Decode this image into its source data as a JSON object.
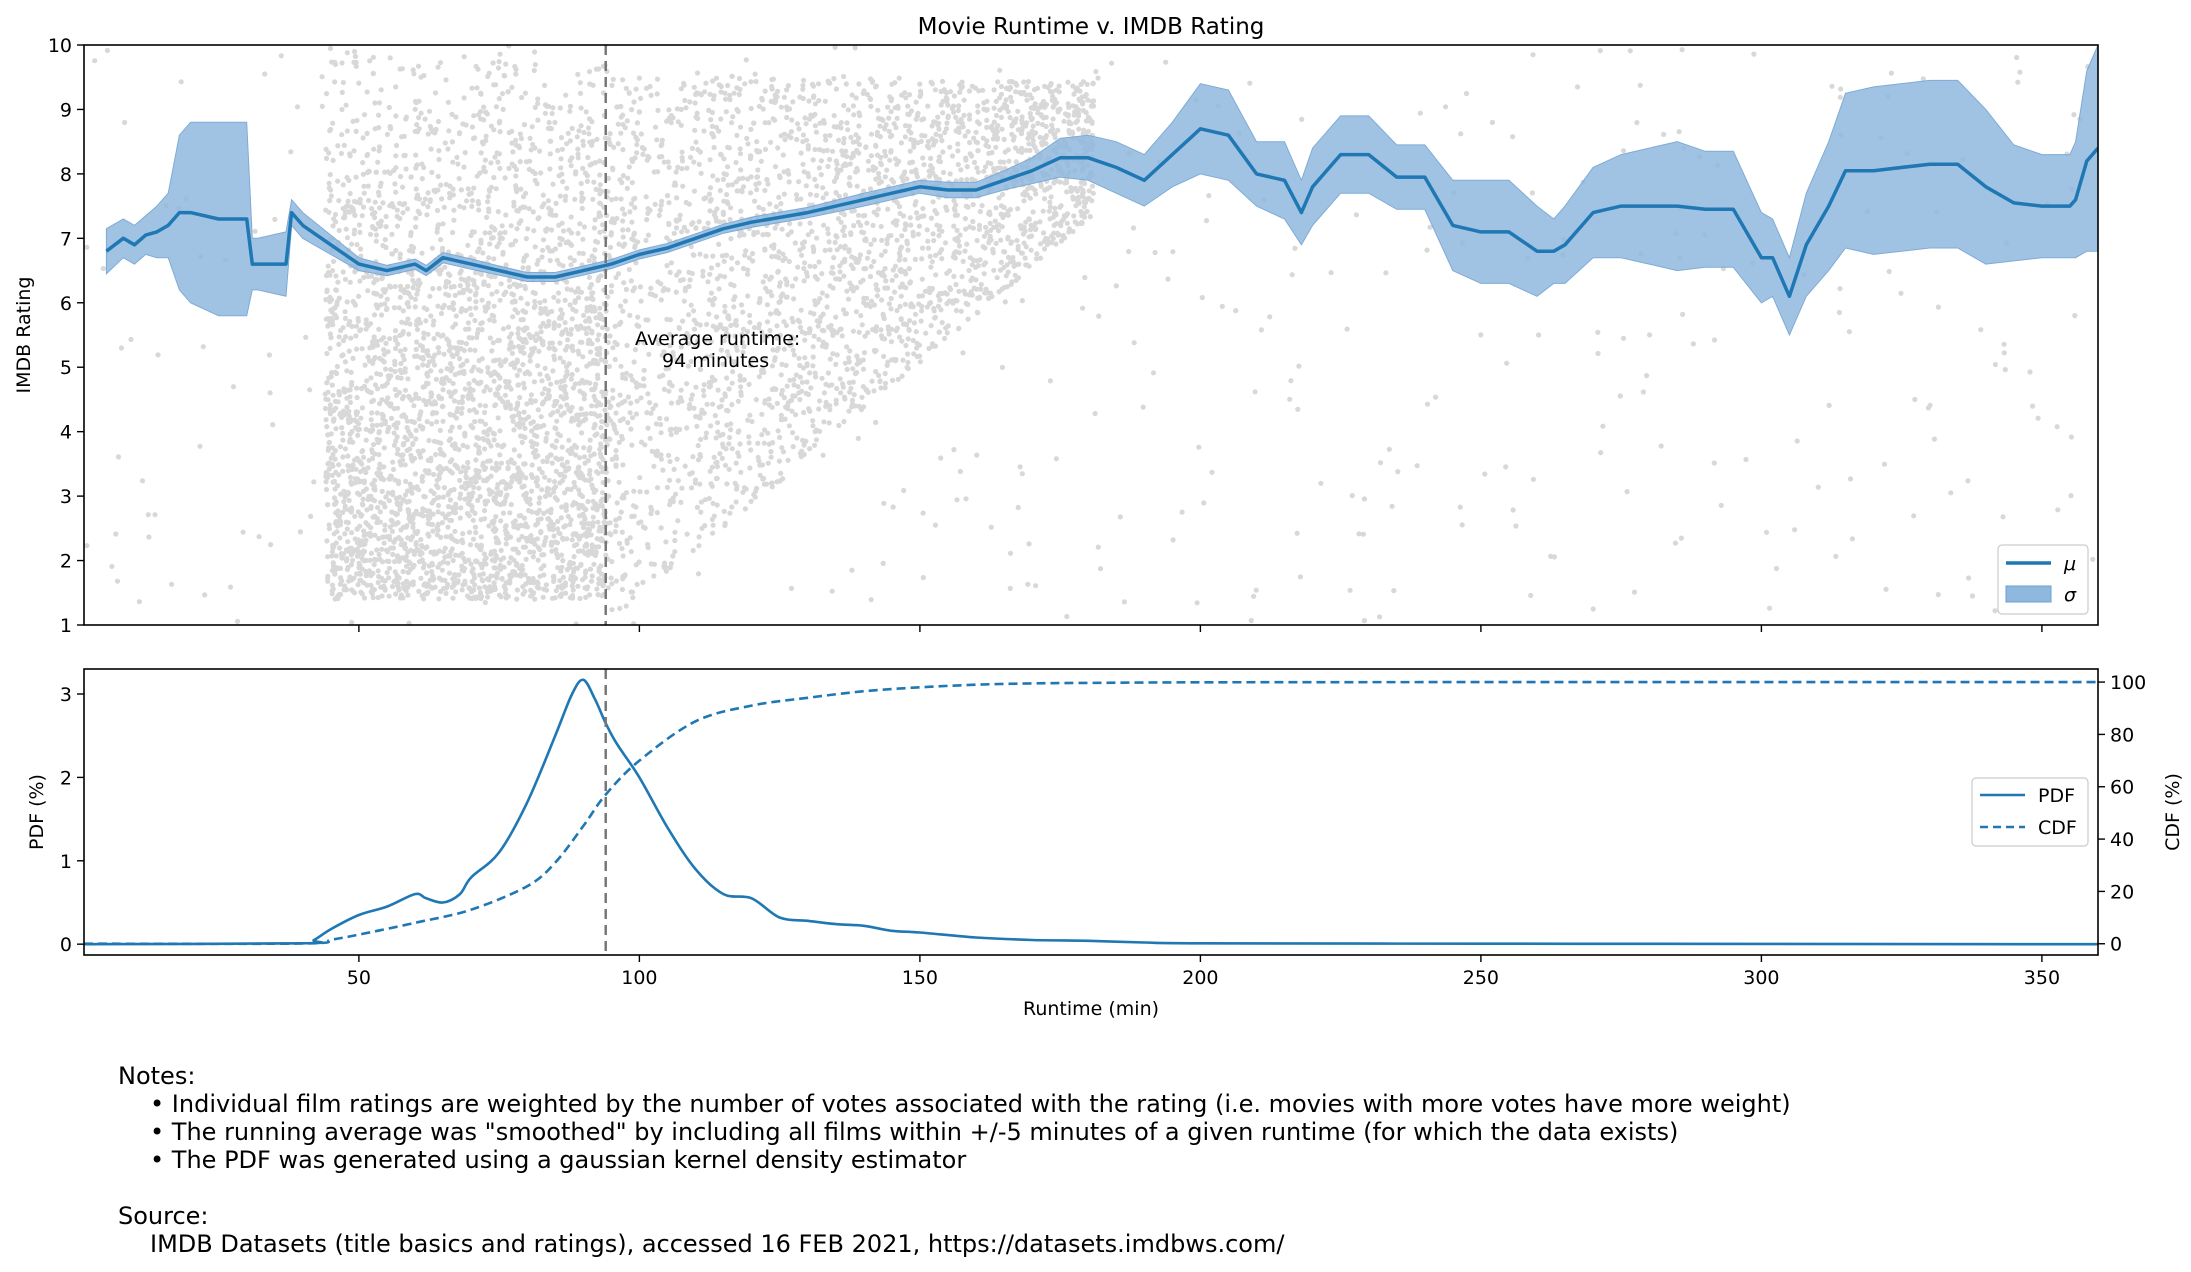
{
  "chart_data": [
    {
      "type": "line",
      "title": "Movie Runtime v. IMDB Rating",
      "xlabel": "",
      "ylabel": "IMDB Rating",
      "xlim": [
        1,
        360
      ],
      "ylim": [
        1,
        10
      ],
      "x_ticks": [
        50,
        100,
        150,
        200,
        250,
        300,
        350
      ],
      "y_ticks": [
        1,
        2,
        3,
        4,
        5,
        6,
        7,
        8,
        9,
        10
      ],
      "legend": {
        "position": "lower-right",
        "entries": [
          "μ",
          "σ"
        ]
      },
      "annotation": {
        "line1": "Average runtime:",
        "line2": "94 minutes",
        "x": 94
      },
      "scatter_note": "dense grey scatter of individual film ratings, runtime 45-180",
      "colors": {
        "mean": "#1f77b4",
        "band": "#8fb8de",
        "scatter": "#d8d8d8",
        "vline": "#777777"
      },
      "series": [
        {
          "name": "μ",
          "x": [
            5,
            8,
            10,
            12,
            14,
            16,
            18,
            20,
            25,
            30,
            31,
            32,
            37,
            38,
            40,
            45,
            50,
            55,
            60,
            62,
            65,
            70,
            75,
            80,
            85,
            90,
            95,
            100,
            105,
            110,
            115,
            120,
            130,
            140,
            145,
            150,
            155,
            160,
            165,
            170,
            175,
            180,
            185,
            190,
            195,
            200,
            205,
            210,
            215,
            218,
            220,
            225,
            230,
            235,
            240,
            245,
            250,
            255,
            260,
            263,
            265,
            270,
            275,
            280,
            285,
            290,
            295,
            300,
            302,
            305,
            308,
            312,
            315,
            320,
            330,
            335,
            340,
            345,
            350,
            355,
            356,
            358,
            360
          ],
          "mean": [
            6.8,
            7.0,
            6.9,
            7.05,
            7.1,
            7.2,
            7.4,
            7.4,
            7.3,
            7.3,
            6.6,
            6.6,
            6.6,
            7.4,
            7.2,
            6.9,
            6.6,
            6.5,
            6.6,
            6.5,
            6.7,
            6.6,
            6.5,
            6.4,
            6.4,
            6.5,
            6.6,
            6.75,
            6.85,
            7.0,
            7.15,
            7.25,
            7.4,
            7.6,
            7.7,
            7.8,
            7.75,
            7.75,
            7.9,
            8.05,
            8.25,
            8.25,
            8.1,
            7.9,
            8.3,
            8.7,
            8.6,
            8.0,
            7.9,
            7.4,
            7.8,
            8.3,
            8.3,
            7.95,
            7.95,
            7.2,
            7.1,
            7.1,
            6.8,
            6.8,
            6.9,
            7.4,
            7.5,
            7.5,
            7.5,
            7.45,
            7.45,
            6.7,
            6.7,
            6.1,
            6.9,
            7.5,
            8.05,
            8.05,
            8.15,
            8.15,
            7.8,
            7.55,
            7.5,
            7.5,
            7.6,
            8.2,
            8.4
          ],
          "sigma": [
            0.35,
            0.3,
            0.3,
            0.3,
            0.4,
            0.5,
            1.2,
            1.4,
            1.5,
            1.5,
            0.4,
            0.4,
            0.5,
            0.2,
            0.2,
            0.15,
            0.1,
            0.08,
            0.08,
            0.08,
            0.08,
            0.08,
            0.07,
            0.07,
            0.07,
            0.07,
            0.07,
            0.07,
            0.07,
            0.07,
            0.07,
            0.08,
            0.08,
            0.1,
            0.1,
            0.1,
            0.12,
            0.12,
            0.15,
            0.2,
            0.3,
            0.35,
            0.4,
            0.4,
            0.5,
            0.7,
            0.7,
            0.5,
            0.6,
            0.5,
            0.6,
            0.6,
            0.6,
            0.5,
            0.5,
            0.7,
            0.8,
            0.8,
            0.7,
            0.5,
            0.6,
            0.7,
            0.8,
            0.9,
            1.0,
            0.9,
            0.9,
            0.7,
            0.6,
            0.6,
            0.8,
            1.0,
            1.2,
            1.3,
            1.3,
            1.3,
            1.2,
            0.9,
            0.8,
            0.8,
            0.9,
            1.4,
            1.6
          ]
        }
      ]
    },
    {
      "type": "line",
      "title": "",
      "xlabel": "Runtime (min)",
      "ylabel": "PDF (%)",
      "ylabel_right": "CDF (%)",
      "xlim": [
        1,
        360
      ],
      "ylim": [
        -0.13,
        3.3
      ],
      "ylim_right": [
        -4.3,
        105
      ],
      "x_ticks": [
        50,
        100,
        150,
        200,
        250,
        300,
        350
      ],
      "y_ticks": [
        0,
        1,
        2,
        3
      ],
      "y_ticks_right": [
        0,
        20,
        40,
        60,
        80,
        100
      ],
      "legend": {
        "position": "center-right",
        "entries": [
          "PDF",
          "CDF"
        ]
      },
      "vline_x": 94,
      "series": [
        {
          "name": "PDF",
          "style": "solid",
          "x": [
            1,
            40,
            42,
            45,
            50,
            55,
            60,
            62,
            65,
            68,
            70,
            75,
            80,
            85,
            88,
            90,
            92,
            94,
            96,
            100,
            105,
            110,
            115,
            120,
            125,
            130,
            135,
            140,
            145,
            150,
            160,
            170,
            180,
            190,
            200,
            250,
            300,
            360
          ],
          "y": [
            0,
            0.01,
            0.05,
            0.18,
            0.35,
            0.45,
            0.6,
            0.55,
            0.5,
            0.6,
            0.8,
            1.1,
            1.7,
            2.5,
            3.0,
            3.17,
            2.95,
            2.65,
            2.4,
            2.0,
            1.4,
            0.9,
            0.6,
            0.55,
            0.32,
            0.28,
            0.24,
            0.22,
            0.16,
            0.14,
            0.08,
            0.05,
            0.04,
            0.02,
            0.01,
            0.005,
            0.003,
            0.0
          ]
        },
        {
          "name": "CDF",
          "style": "dashed",
          "x": [
            1,
            40,
            45,
            50,
            60,
            70,
            80,
            85,
            90,
            94,
            100,
            110,
            120,
            130,
            140,
            150,
            160,
            170,
            180,
            200,
            250,
            300,
            360
          ],
          "y": [
            0,
            0.1,
            1.5,
            3.5,
            8,
            13,
            22,
            31,
            45,
            57,
            70,
            85,
            91,
            94,
            96.5,
            98,
            99,
            99.5,
            99.7,
            99.9,
            100,
            100,
            100
          ]
        }
      ]
    }
  ],
  "notes": {
    "heading": "Notes:",
    "items": [
      "Individual film ratings are weighted by the number of votes associated with the rating (i.e. movies with more votes have more weight)",
      "The running average was \"smoothed\" by including all films within +/-5 minutes of a given runtime (for which the data exists)",
      "The PDF was generated using a gaussian kernel density estimator"
    ]
  },
  "source": {
    "heading": "Source:",
    "text": "IMDB Datasets (title basics and ratings), accessed 16 FEB 2021, https://datasets.imdbws.com/"
  }
}
